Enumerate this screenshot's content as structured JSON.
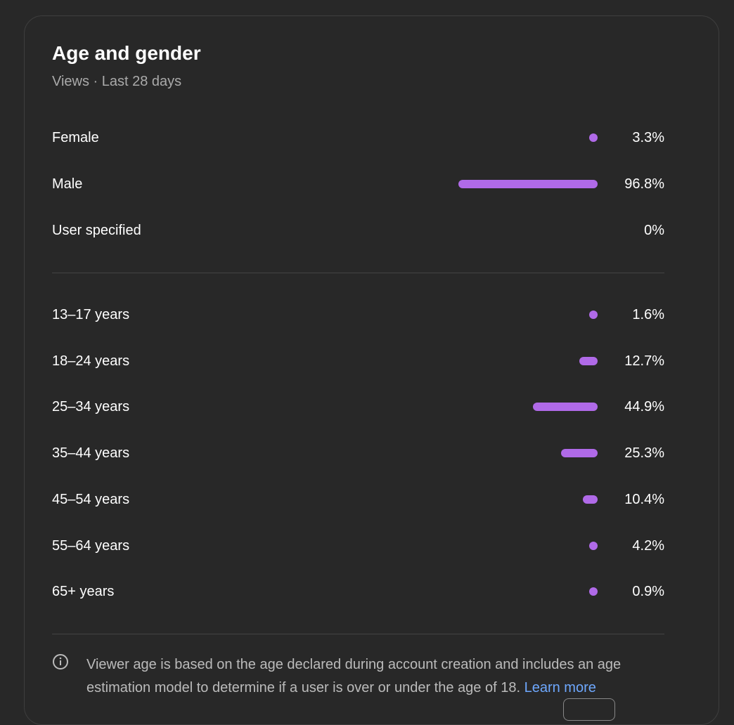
{
  "header": {
    "title": "Age and gender",
    "subtitle": "Views · Last 28 days"
  },
  "gender": [
    {
      "label": "Female",
      "value": 3.3,
      "value_label": "3.3%"
    },
    {
      "label": "Male",
      "value": 96.8,
      "value_label": "96.8%"
    },
    {
      "label": "User specified",
      "value": 0,
      "value_label": "0%"
    }
  ],
  "age": [
    {
      "label": "13–17 years",
      "value": 1.6,
      "value_label": "1.6%"
    },
    {
      "label": "18–24 years",
      "value": 12.7,
      "value_label": "12.7%"
    },
    {
      "label": "25–34 years",
      "value": 44.9,
      "value_label": "44.9%"
    },
    {
      "label": "35–44 years",
      "value": 25.3,
      "value_label": "25.3%"
    },
    {
      "label": "45–54 years",
      "value": 10.4,
      "value_label": "10.4%"
    },
    {
      "label": "55–64 years",
      "value": 4.2,
      "value_label": "4.2%"
    },
    {
      "label": "65+ years",
      "value": 0.9,
      "value_label": "0.9%"
    }
  ],
  "footnote": {
    "text": "Viewer age is based on the age declared during account creation and includes an age estimation model to determine if a user is over or under the age of 18.",
    "link": "Learn more"
  }
}
